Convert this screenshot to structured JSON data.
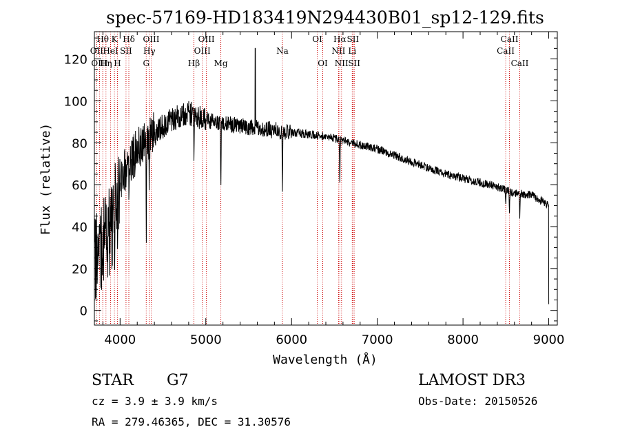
{
  "colors": {
    "axis": "#000000",
    "spectrum": "#000000",
    "line_marker": "#cc0000",
    "background": "#ffffff"
  },
  "chart_data": {
    "type": "line",
    "title": "spec-57169-HD183419N294430B01_sp12-129.fits",
    "xlabel": "Wavelength (Å)",
    "ylabel": "Flux (relative)",
    "xlim": [
      3700,
      9100
    ],
    "ylim": [
      -7,
      133
    ],
    "x_ticks": [
      4000,
      5000,
      6000,
      7000,
      8000,
      9000
    ],
    "y_ticks": [
      0,
      20,
      40,
      60,
      80,
      100,
      120
    ],
    "continuum": [
      [
        3700,
        25
      ],
      [
        3800,
        32
      ],
      [
        3900,
        40
      ],
      [
        4000,
        62
      ],
      [
        4100,
        70
      ],
      [
        4200,
        76
      ],
      [
        4300,
        80
      ],
      [
        4400,
        84
      ],
      [
        4500,
        88
      ],
      [
        4600,
        91
      ],
      [
        4700,
        93
      ],
      [
        4800,
        94
      ],
      [
        4900,
        93
      ],
      [
        5000,
        91
      ],
      [
        5200,
        89
      ],
      [
        5400,
        88
      ],
      [
        5600,
        87
      ],
      [
        5800,
        86
      ],
      [
        6000,
        85
      ],
      [
        6200,
        84
      ],
      [
        6400,
        83
      ],
      [
        6600,
        81
      ],
      [
        6800,
        79
      ],
      [
        7000,
        77
      ],
      [
        7200,
        74
      ],
      [
        7400,
        71
      ],
      [
        7600,
        68
      ],
      [
        7800,
        65
      ],
      [
        8000,
        63
      ],
      [
        8200,
        61
      ],
      [
        8400,
        59
      ],
      [
        8600,
        56
      ],
      [
        8800,
        55
      ],
      [
        9000,
        50
      ]
    ],
    "absorption_features": [
      {
        "label": "Ca II K",
        "center": 3934,
        "depth": 30
      },
      {
        "label": "Ca II H",
        "center": 3969,
        "depth": 28
      },
      {
        "label": "H delta",
        "center": 4102,
        "depth": 12
      },
      {
        "label": "G band",
        "center": 4305,
        "depth": 40
      },
      {
        "label": "H gamma",
        "center": 4341,
        "depth": 20
      },
      {
        "label": "H beta",
        "center": 4861,
        "depth": 18
      },
      {
        "label": "Mg",
        "center": 5175,
        "depth": 30
      },
      {
        "label": "Na",
        "center": 5893,
        "depth": 26
      },
      {
        "label": "H alpha",
        "center": 6563,
        "depth": 20
      },
      {
        "label": "Ca II",
        "center": 8498,
        "depth": 8
      },
      {
        "label": "Ca II",
        "center": 8542,
        "depth": 12
      },
      {
        "label": "Ca II",
        "center": 8662,
        "depth": 10
      }
    ],
    "emission_features": [
      {
        "label": "spike",
        "center": 5577,
        "peak": 125
      }
    ],
    "line_markers": [
      {
        "label": "Hθ",
        "wavelength": 3798,
        "row": 1
      },
      {
        "label": "OII",
        "wavelength": 3727,
        "row": 2
      },
      {
        "label": "OIII",
        "wavelength": 3760,
        "row": 3
      },
      {
        "label": "K",
        "wavelength": 3934,
        "row": 1
      },
      {
        "label": "HeI",
        "wavelength": 3889,
        "row": 2
      },
      {
        "label": "Hη",
        "wavelength": 3835,
        "row": 3
      },
      {
        "label": "SII",
        "wavelength": 4069,
        "row": 2
      },
      {
        "label": "H",
        "wavelength": 3969,
        "row": 3
      },
      {
        "label": "Hδ",
        "wavelength": 4102,
        "row": 1
      },
      {
        "label": "OIII",
        "wavelength": 4363,
        "row": 1
      },
      {
        "label": "Hγ",
        "wavelength": 4341,
        "row": 2
      },
      {
        "label": "G",
        "wavelength": 4305,
        "row": 3
      },
      {
        "label": "Hβ",
        "wavelength": 4861,
        "row": 3
      },
      {
        "label": "OIII",
        "wavelength": 5007,
        "row": 1
      },
      {
        "label": "OIII",
        "wavelength": 4959,
        "row": 2
      },
      {
        "label": "Mg",
        "wavelength": 5175,
        "row": 3
      },
      {
        "label": "Na",
        "wavelength": 5893,
        "row": 2
      },
      {
        "label": "OI",
        "wavelength": 6300,
        "row": 1
      },
      {
        "label": "OI",
        "wavelength": 6364,
        "row": 3
      },
      {
        "label": "Hα",
        "wavelength": 6563,
        "row": 1
      },
      {
        "label": "NII",
        "wavelength": 6548,
        "row": 2
      },
      {
        "label": "NII",
        "wavelength": 6583,
        "row": 3
      },
      {
        "label": "SII",
        "wavelength": 6716,
        "row": 1
      },
      {
        "label": "Li",
        "wavelength": 6708,
        "row": 2
      },
      {
        "label": "SII",
        "wavelength": 6731,
        "row": 3
      },
      {
        "label": "CaII",
        "wavelength": 8542,
        "row": 1
      },
      {
        "label": "CaII",
        "wavelength": 8498,
        "row": 2
      },
      {
        "label": "CaII",
        "wavelength": 8662,
        "row": 3
      }
    ]
  },
  "info": {
    "object_class": "STAR",
    "subclass": "G7",
    "velocity": "cz = 3.9 ± 3.9 km/s",
    "coordinates": "RA = 279.46365, DEC =  31.30576",
    "survey": "LAMOST DR3",
    "obs_date": "Obs-Date: 20150526"
  }
}
